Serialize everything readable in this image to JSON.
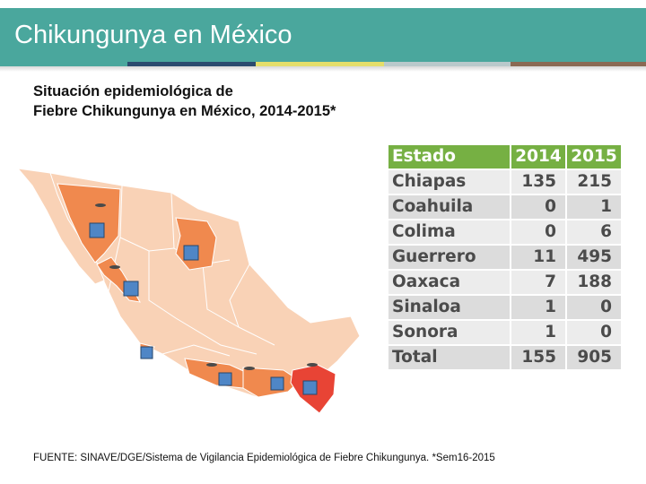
{
  "header": {
    "title": "Chikungunya en México",
    "stripe_colors": [
      "#4aa79d",
      "#2b4b6f",
      "#e4de6a",
      "#b9c9cb",
      "#8a6a54"
    ]
  },
  "subtitle": {
    "line1": "Situación epidemiológica de",
    "line2": "Fiebre Chikungunya  en México, 2014-2015*"
  },
  "table": {
    "headers": [
      "Estado",
      "2014",
      "2015"
    ],
    "rows": [
      {
        "estado": "Chiapas",
        "y2014": "135",
        "y2015": "215"
      },
      {
        "estado": "Coahuila",
        "y2014": "0",
        "y2015": "1"
      },
      {
        "estado": "Colima",
        "y2014": "0",
        "y2015": "6"
      },
      {
        "estado": "Guerrero",
        "y2014": "11",
        "y2015": "495"
      },
      {
        "estado": "Oaxaca",
        "y2014": "7",
        "y2015": "188"
      },
      {
        "estado": "Sinaloa",
        "y2014": "1",
        "y2015": "0"
      },
      {
        "estado": "Sonora",
        "y2014": "1",
        "y2015": "0"
      }
    ],
    "total": {
      "estado": "Total",
      "y2014": "155",
      "y2015": "905"
    },
    "header_color": "#76b043"
  },
  "map": {
    "colors": {
      "base": "#f9d2b6",
      "highlight": "#f0894e",
      "chiapas": "#e84435",
      "marker": "#4f86c6"
    }
  },
  "footer": {
    "source": "FUENTE: SINAVE/DGE/Sistema de Vigilancia Epidemiológica de Fiebre Chikungunya. *Sem16-2015"
  }
}
